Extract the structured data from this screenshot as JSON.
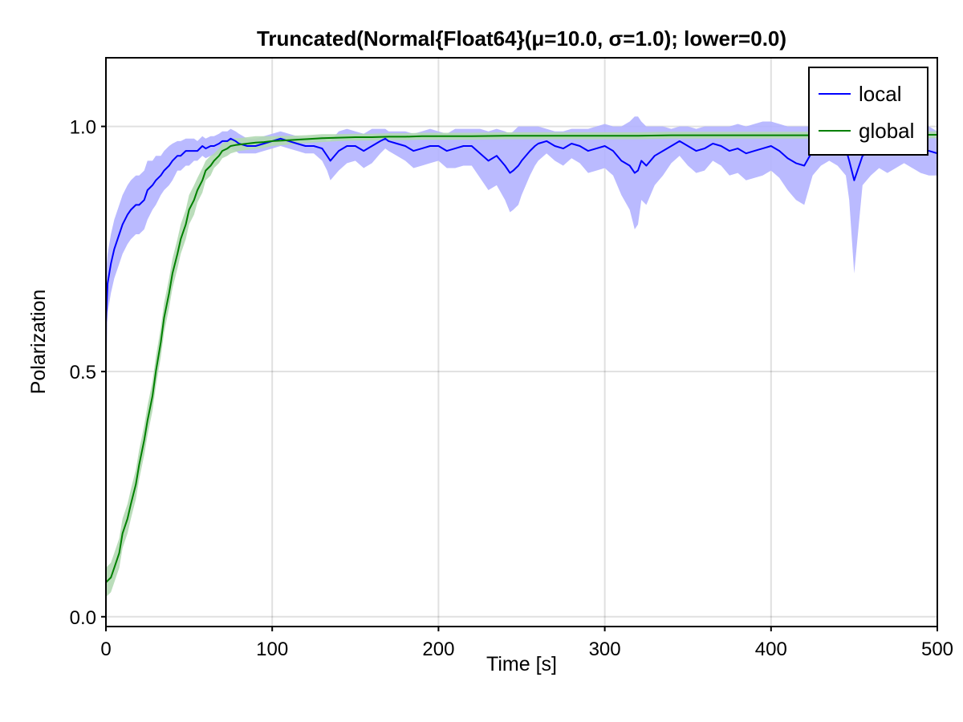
{
  "chart_data": {
    "type": "line",
    "title": "Truncated(Normal{Float64}(μ=10.0, σ=1.0); lower=0.0)",
    "xlabel": "Time [s]",
    "ylabel": "Polarization",
    "xlim": [
      0,
      500
    ],
    "ylim": [
      -0.02,
      1.14
    ],
    "xticks": [
      0,
      100,
      200,
      300,
      400,
      500
    ],
    "xtick_labels": [
      "0",
      "100",
      "200",
      "300",
      "400",
      "500"
    ],
    "yticks": [
      0.0,
      0.5,
      1.0
    ],
    "ytick_labels": [
      "0.0",
      "0.5",
      "1.0"
    ],
    "grid": true,
    "legend_position": "top-right",
    "series": [
      {
        "name": "local",
        "color": "#0000ff",
        "band_color": "#b3b3ff",
        "x": [
          0,
          1,
          3,
          5,
          8,
          10,
          13,
          15,
          18,
          20,
          23,
          25,
          28,
          30,
          33,
          35,
          38,
          40,
          43,
          45,
          48,
          50,
          53,
          55,
          58,
          60,
          63,
          65,
          68,
          70,
          73,
          75,
          78,
          80,
          85,
          90,
          95,
          100,
          105,
          110,
          115,
          120,
          125,
          130,
          133,
          135,
          140,
          145,
          150,
          155,
          160,
          165,
          168,
          170,
          175,
          180,
          185,
          190,
          195,
          200,
          205,
          210,
          215,
          220,
          225,
          230,
          235,
          240,
          243,
          245,
          248,
          250,
          255,
          258,
          260,
          265,
          270,
          275,
          280,
          285,
          290,
          295,
          300,
          305,
          310,
          315,
          318,
          320,
          322,
          325,
          330,
          335,
          340,
          345,
          350,
          355,
          360,
          365,
          370,
          375,
          380,
          385,
          390,
          395,
          400,
          405,
          410,
          415,
          420,
          425,
          430,
          435,
          440,
          445,
          447,
          450,
          455,
          460,
          465,
          470,
          475,
          480,
          485,
          490,
          495,
          500
        ],
        "y": [
          0.6,
          0.68,
          0.72,
          0.75,
          0.78,
          0.8,
          0.82,
          0.83,
          0.84,
          0.84,
          0.85,
          0.87,
          0.88,
          0.89,
          0.9,
          0.91,
          0.92,
          0.93,
          0.94,
          0.94,
          0.95,
          0.95,
          0.95,
          0.95,
          0.96,
          0.955,
          0.96,
          0.96,
          0.965,
          0.97,
          0.97,
          0.975,
          0.97,
          0.965,
          0.96,
          0.96,
          0.965,
          0.97,
          0.975,
          0.97,
          0.965,
          0.96,
          0.96,
          0.955,
          0.94,
          0.93,
          0.95,
          0.96,
          0.96,
          0.95,
          0.96,
          0.97,
          0.975,
          0.97,
          0.965,
          0.96,
          0.95,
          0.955,
          0.96,
          0.96,
          0.95,
          0.955,
          0.96,
          0.96,
          0.945,
          0.93,
          0.94,
          0.92,
          0.905,
          0.91,
          0.92,
          0.93,
          0.95,
          0.96,
          0.965,
          0.97,
          0.96,
          0.955,
          0.965,
          0.96,
          0.95,
          0.955,
          0.96,
          0.95,
          0.93,
          0.92,
          0.905,
          0.91,
          0.93,
          0.92,
          0.94,
          0.95,
          0.96,
          0.97,
          0.96,
          0.95,
          0.955,
          0.965,
          0.96,
          0.95,
          0.955,
          0.945,
          0.95,
          0.955,
          0.96,
          0.95,
          0.935,
          0.925,
          0.92,
          0.95,
          0.96,
          0.965,
          0.96,
          0.955,
          0.93,
          0.89,
          0.94,
          0.95,
          0.96,
          0.955,
          0.96,
          0.965,
          0.96,
          0.955,
          0.95,
          0.945
        ],
        "lower": [
          0.45,
          0.62,
          0.66,
          0.69,
          0.72,
          0.74,
          0.76,
          0.77,
          0.78,
          0.78,
          0.79,
          0.81,
          0.83,
          0.84,
          0.86,
          0.87,
          0.88,
          0.89,
          0.91,
          0.91,
          0.92,
          0.92,
          0.93,
          0.93,
          0.94,
          0.935,
          0.94,
          0.94,
          0.945,
          0.95,
          0.95,
          0.955,
          0.95,
          0.945,
          0.945,
          0.945,
          0.95,
          0.955,
          0.96,
          0.955,
          0.95,
          0.945,
          0.945,
          0.93,
          0.91,
          0.89,
          0.91,
          0.925,
          0.93,
          0.915,
          0.925,
          0.945,
          0.955,
          0.95,
          0.94,
          0.93,
          0.915,
          0.92,
          0.925,
          0.93,
          0.915,
          0.915,
          0.92,
          0.92,
          0.895,
          0.87,
          0.88,
          0.85,
          0.825,
          0.83,
          0.84,
          0.86,
          0.9,
          0.92,
          0.93,
          0.945,
          0.93,
          0.92,
          0.935,
          0.925,
          0.905,
          0.91,
          0.915,
          0.9,
          0.86,
          0.83,
          0.79,
          0.8,
          0.85,
          0.84,
          0.88,
          0.9,
          0.925,
          0.94,
          0.92,
          0.905,
          0.91,
          0.93,
          0.92,
          0.9,
          0.905,
          0.89,
          0.895,
          0.9,
          0.91,
          0.895,
          0.87,
          0.85,
          0.84,
          0.9,
          0.92,
          0.93,
          0.92,
          0.9,
          0.85,
          0.7,
          0.88,
          0.9,
          0.915,
          0.905,
          0.915,
          0.925,
          0.915,
          0.905,
          0.9,
          0.9
        ],
        "upper": [
          0.7,
          0.74,
          0.78,
          0.81,
          0.84,
          0.86,
          0.88,
          0.89,
          0.9,
          0.9,
          0.91,
          0.93,
          0.93,
          0.94,
          0.94,
          0.95,
          0.96,
          0.965,
          0.97,
          0.97,
          0.975,
          0.975,
          0.975,
          0.97,
          0.98,
          0.975,
          0.98,
          0.98,
          0.985,
          0.99,
          0.99,
          0.995,
          0.99,
          0.985,
          0.975,
          0.975,
          0.98,
          0.985,
          0.99,
          0.985,
          0.98,
          0.975,
          0.975,
          0.98,
          0.97,
          0.97,
          0.99,
          0.995,
          0.99,
          0.985,
          0.995,
          0.995,
          0.995,
          0.99,
          0.99,
          0.99,
          0.985,
          0.99,
          0.995,
          0.99,
          0.985,
          0.995,
          0.995,
          0.995,
          0.995,
          0.99,
          0.995,
          0.99,
          0.985,
          0.99,
          1.0,
          1.0,
          1.0,
          1.0,
          1.0,
          0.995,
          0.99,
          0.99,
          0.995,
          0.995,
          0.995,
          1.0,
          1.005,
          1.0,
          1.0,
          1.01,
          1.02,
          1.02,
          1.01,
          1.0,
          1.0,
          1.0,
          0.995,
          1.0,
          1.0,
          0.995,
          1.0,
          1.0,
          1.0,
          1.0,
          1.005,
          1.0,
          1.005,
          1.01,
          1.01,
          1.005,
          1.0,
          1.0,
          1.0,
          1.0,
          1.0,
          1.0,
          1.0,
          1.01,
          1.01,
          1.0,
          1.0,
          1.0,
          1.005,
          1.005,
          1.005,
          1.005,
          1.005,
          1.005,
          1.0,
          0.99
        ]
      },
      {
        "name": "global",
        "color": "#008000",
        "band_color": "#b3d9b3",
        "x": [
          0,
          3,
          5,
          8,
          10,
          13,
          15,
          18,
          20,
          23,
          25,
          28,
          30,
          33,
          35,
          38,
          40,
          43,
          45,
          48,
          50,
          53,
          55,
          58,
          60,
          63,
          65,
          68,
          70,
          73,
          75,
          78,
          80,
          85,
          90,
          95,
          100,
          110,
          120,
          130,
          140,
          150,
          160,
          170,
          180,
          190,
          200,
          220,
          240,
          260,
          280,
          300,
          320,
          340,
          360,
          380,
          400,
          420,
          440,
          460,
          480,
          500
        ],
        "y": [
          0.07,
          0.08,
          0.1,
          0.13,
          0.17,
          0.2,
          0.23,
          0.27,
          0.31,
          0.36,
          0.4,
          0.45,
          0.5,
          0.56,
          0.61,
          0.66,
          0.7,
          0.74,
          0.77,
          0.8,
          0.83,
          0.85,
          0.87,
          0.89,
          0.91,
          0.92,
          0.93,
          0.94,
          0.95,
          0.955,
          0.96,
          0.962,
          0.963,
          0.965,
          0.967,
          0.968,
          0.97,
          0.972,
          0.974,
          0.976,
          0.977,
          0.978,
          0.978,
          0.979,
          0.979,
          0.98,
          0.98,
          0.98,
          0.981,
          0.981,
          0.981,
          0.981,
          0.981,
          0.982,
          0.982,
          0.982,
          0.982,
          0.982,
          0.982,
          0.983,
          0.983,
          0.983
        ],
        "lower": [
          0.04,
          0.05,
          0.07,
          0.1,
          0.14,
          0.17,
          0.2,
          0.24,
          0.28,
          0.33,
          0.37,
          0.42,
          0.47,
          0.53,
          0.58,
          0.63,
          0.67,
          0.71,
          0.74,
          0.77,
          0.8,
          0.82,
          0.845,
          0.865,
          0.89,
          0.9,
          0.915,
          0.925,
          0.935,
          0.94,
          0.945,
          0.948,
          0.95,
          0.952,
          0.954,
          0.956,
          0.96,
          0.963,
          0.966,
          0.968,
          0.97,
          0.971,
          0.971,
          0.972,
          0.972,
          0.973,
          0.973,
          0.973,
          0.974,
          0.974,
          0.974,
          0.974,
          0.974,
          0.975,
          0.975,
          0.975,
          0.975,
          0.975,
          0.975,
          0.976,
          0.976,
          0.976
        ],
        "upper": [
          0.1,
          0.11,
          0.13,
          0.16,
          0.2,
          0.23,
          0.26,
          0.3,
          0.34,
          0.39,
          0.43,
          0.48,
          0.53,
          0.59,
          0.64,
          0.69,
          0.73,
          0.77,
          0.8,
          0.83,
          0.86,
          0.88,
          0.895,
          0.915,
          0.93,
          0.94,
          0.945,
          0.955,
          0.965,
          0.97,
          0.975,
          0.976,
          0.976,
          0.978,
          0.98,
          0.98,
          0.98,
          0.981,
          0.982,
          0.984,
          0.984,
          0.985,
          0.985,
          0.986,
          0.986,
          0.987,
          0.987,
          0.987,
          0.988,
          0.988,
          0.988,
          0.988,
          0.988,
          0.989,
          0.989,
          0.989,
          0.989,
          0.989,
          0.989,
          0.99,
          0.99,
          0.99
        ]
      }
    ]
  }
}
